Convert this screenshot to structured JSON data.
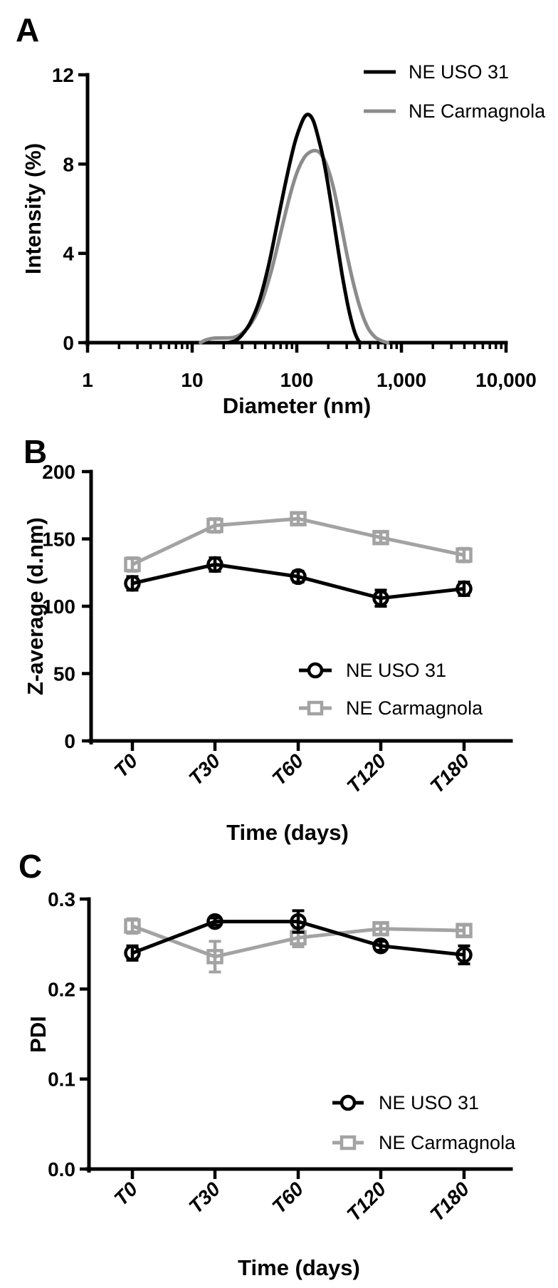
{
  "panels": {
    "a": {
      "letter": "A"
    },
    "b": {
      "letter": "B"
    },
    "c": {
      "letter": "C"
    }
  },
  "colors": {
    "black": "#000000",
    "gray_curve": "#8c8c8c",
    "gray_series": "#a3a3a3"
  },
  "chart_data": [
    {
      "panel": "A",
      "type": "line",
      "title": "",
      "xlabel": "Diameter (nm)",
      "ylabel": "Intensity (%)",
      "x_scale": "log",
      "xlim": [
        1,
        10000
      ],
      "x_tick_labels": [
        "1",
        "10",
        "100",
        "1,000",
        "10,000"
      ],
      "ylim": [
        0,
        12
      ],
      "y_ticks": [
        0,
        4,
        8,
        12
      ],
      "y_tick_labels": [
        "0",
        "4",
        "8",
        "12"
      ],
      "grid": false,
      "legend_position": "top-right",
      "legend": [
        "NE USO 31",
        "NE Carmagnola"
      ],
      "series": [
        {
          "name": "NE Carmagnola",
          "color": "#8c8c8c",
          "points": [
            [
              12,
              0
            ],
            [
              13.5,
              0.12
            ],
            [
              16,
              0.2
            ],
            [
              20,
              0.21
            ],
            [
              25,
              0.24
            ],
            [
              30,
              0.42
            ],
            [
              37,
              0.9
            ],
            [
              46,
              1.8
            ],
            [
              57,
              3.2
            ],
            [
              70,
              4.9
            ],
            [
              85,
              6.5
            ],
            [
              100,
              7.6
            ],
            [
              118,
              8.3
            ],
            [
              135,
              8.55
            ],
            [
              152,
              8.6
            ],
            [
              170,
              8.45
            ],
            [
              195,
              7.9
            ],
            [
              225,
              6.9
            ],
            [
              260,
              5.5
            ],
            [
              300,
              4.0
            ],
            [
              350,
              2.6
            ],
            [
              410,
              1.45
            ],
            [
              480,
              0.65
            ],
            [
              560,
              0.25
            ],
            [
              650,
              0.08
            ],
            [
              740,
              0
            ]
          ]
        },
        {
          "name": "NE USO 31",
          "color": "#000000",
          "points": [
            [
              22,
              0
            ],
            [
              26,
              0.1
            ],
            [
              30,
              0.35
            ],
            [
              36,
              0.9
            ],
            [
              44,
              1.9
            ],
            [
              54,
              3.5
            ],
            [
              66,
              5.5
            ],
            [
              80,
              7.4
            ],
            [
              95,
              8.9
            ],
            [
              108,
              9.7
            ],
            [
              120,
              10.15
            ],
            [
              132,
              10.2
            ],
            [
              145,
              9.9
            ],
            [
              160,
              9.2
            ],
            [
              180,
              8.2
            ],
            [
              205,
              6.7
            ],
            [
              235,
              4.9
            ],
            [
              270,
              3.1
            ],
            [
              310,
              1.6
            ],
            [
              350,
              0.6
            ],
            [
              385,
              0.12
            ],
            [
              410,
              0
            ]
          ]
        }
      ]
    },
    {
      "panel": "B",
      "type": "line",
      "title": "",
      "xlabel": "Time (days)",
      "ylabel": "Z-average (d.nm)",
      "categories": [
        "T0",
        "T30",
        "T60",
        "T120",
        "T180"
      ],
      "ylim": [
        0,
        200
      ],
      "y_ticks": [
        0,
        50,
        100,
        150,
        200
      ],
      "y_tick_labels": [
        "0",
        "50",
        "100",
        "150",
        "200"
      ],
      "grid": false,
      "legend_position": "inside-lower-right",
      "legend": [
        "NE USO 31",
        "NE Carmagnola"
      ],
      "series": [
        {
          "name": "NE Carmagnola",
          "marker": "square",
          "color": "#a3a3a3",
          "values": [
            131,
            160,
            165,
            151,
            138
          ],
          "errors": [
            5,
            5,
            4,
            4,
            5
          ]
        },
        {
          "name": "NE USO 31",
          "marker": "circle",
          "color": "#000000",
          "values": [
            117,
            131,
            122,
            106,
            113
          ],
          "errors": [
            5,
            5,
            4,
            6,
            5
          ]
        }
      ]
    },
    {
      "panel": "C",
      "type": "line",
      "title": "",
      "xlabel": "Time (days)",
      "ylabel": "PDI",
      "categories": [
        "T0",
        "T30",
        "T60",
        "T120",
        "T180"
      ],
      "ylim": [
        0,
        0.3
      ],
      "y_ticks": [
        0,
        0.1,
        0.2,
        0.3
      ],
      "y_tick_labels": [
        "0.0",
        "0.1",
        "0.2",
        "0.3"
      ],
      "grid": false,
      "legend_position": "inside-lower-right",
      "legend": [
        "NE USO 31",
        "NE Carmagnola"
      ],
      "series": [
        {
          "name": "NE Carmagnola",
          "marker": "square",
          "color": "#a3a3a3",
          "values": [
            0.27,
            0.236,
            0.257,
            0.267,
            0.265
          ],
          "errors": [
            0.008,
            0.017,
            0.01,
            0.006,
            0.006
          ]
        },
        {
          "name": "NE USO 31",
          "marker": "circle",
          "color": "#000000",
          "values": [
            0.24,
            0.275,
            0.275,
            0.248,
            0.238
          ],
          "errors": [
            0.008,
            0.004,
            0.012,
            0.005,
            0.01
          ]
        }
      ]
    }
  ]
}
